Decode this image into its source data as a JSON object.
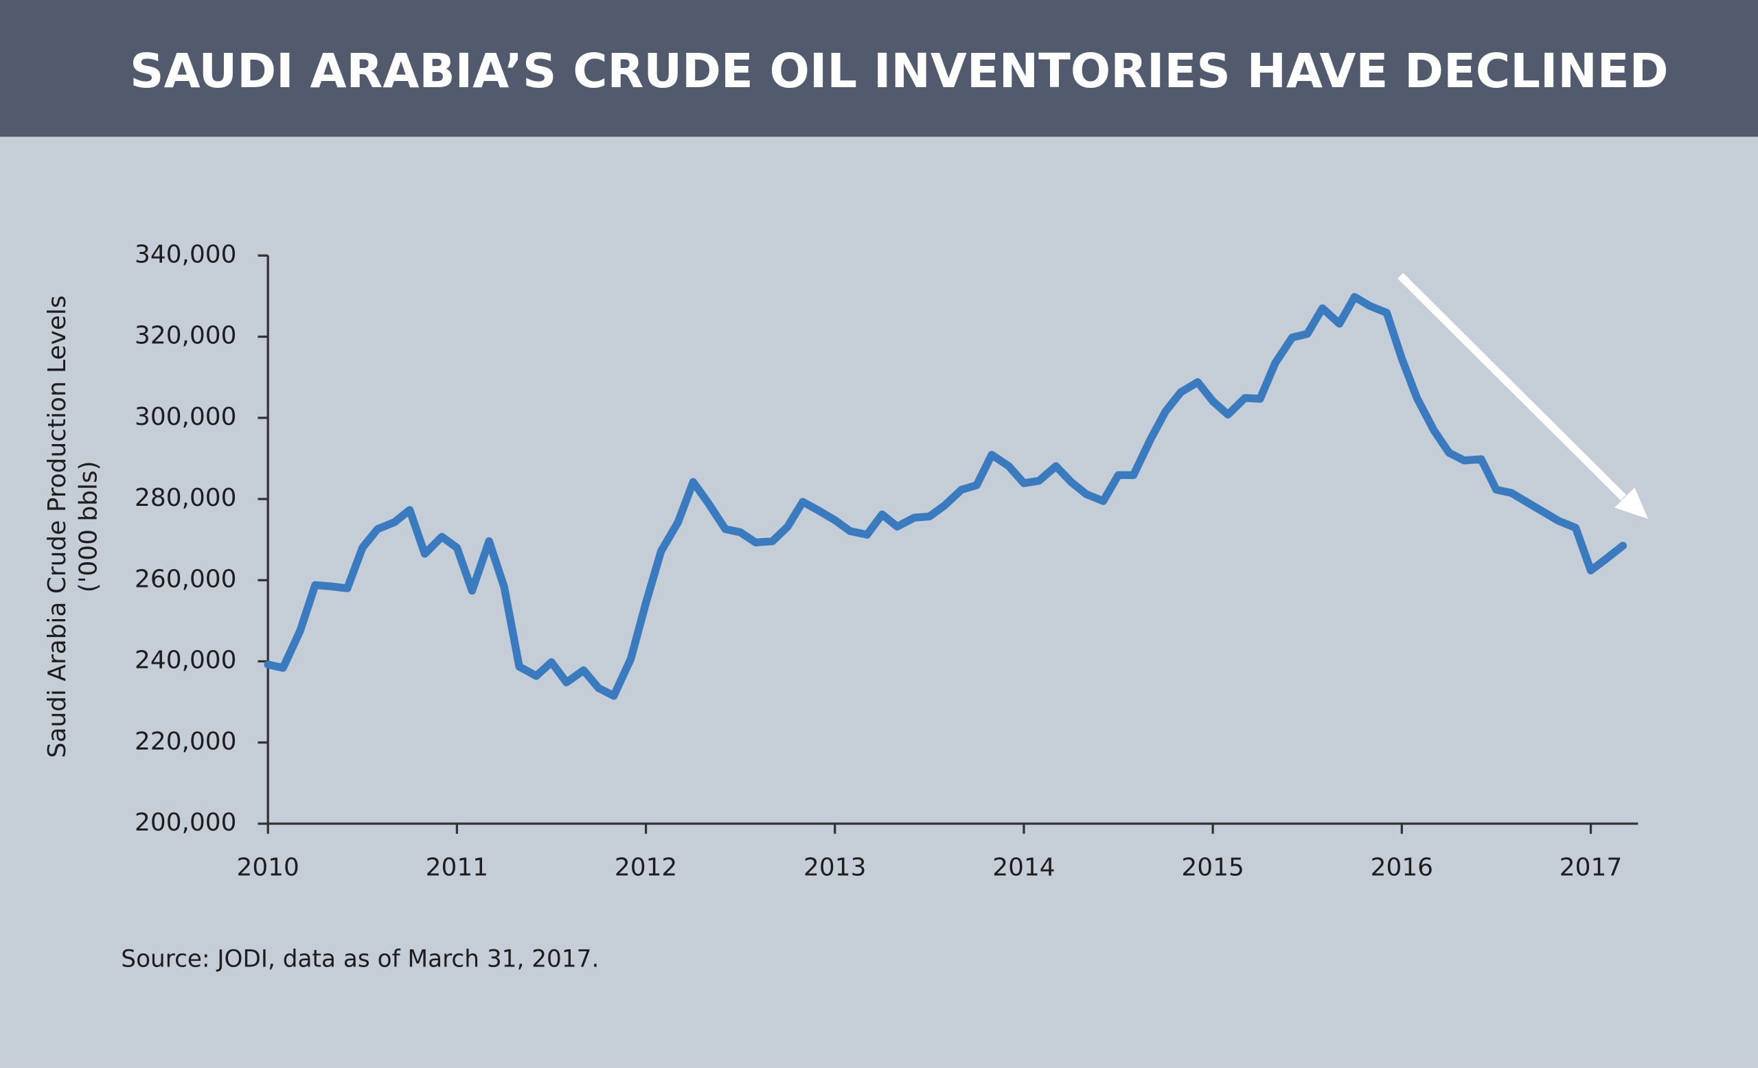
{
  "chart_data": {
    "type": "line",
    "title": "SAUDI ARABIA’S CRUDE OIL INVENTORIES HAVE DECLINED",
    "ylabel": [
      "Saudi Arabia Crude Production Levels",
      "('000 bbls)"
    ],
    "source": "Source: JODI, data as of March 31, 2017.",
    "color": "#3a7bbf",
    "x": [
      2010,
      2010.08,
      2010.17,
      2010.25,
      2010.33,
      2010.42,
      2010.5,
      2010.58,
      2010.67,
      2010.75,
      2010.83,
      2010.92,
      2011,
      2011.08,
      2011.17,
      2011.25,
      2011.33,
      2011.42,
      2011.5,
      2011.58,
      2011.67,
      2011.75,
      2011.83,
      2011.92,
      2012,
      2012.08,
      2012.17,
      2012.25,
      2012.33,
      2012.42,
      2012.5,
      2012.58,
      2012.67,
      2012.75,
      2012.83,
      2012.92,
      2013,
      2013.08,
      2013.17,
      2013.25,
      2013.33,
      2013.42,
      2013.5,
      2013.58,
      2013.67,
      2013.75,
      2013.83,
      2013.92,
      2014,
      2014.08,
      2014.17,
      2014.25,
      2014.33,
      2014.42,
      2014.5,
      2014.58,
      2014.67,
      2014.75,
      2014.83,
      2014.92,
      2015,
      2015.08,
      2015.17,
      2015.25,
      2015.33,
      2015.42,
      2015.5,
      2015.58,
      2015.67,
      2015.75,
      2015.83,
      2015.92,
      2016,
      2016.08,
      2016.17,
      2016.25,
      2016.33,
      2016.42,
      2016.5,
      2016.58,
      2016.67,
      2016.75,
      2016.83,
      2016.92,
      2017,
      2017.08,
      2017.17
    ],
    "values": [
      239200,
      238400,
      247500,
      258800,
      258500,
      258000,
      268000,
      272600,
      274300,
      277300,
      266500,
      270700,
      268000,
      257400,
      269600,
      258300,
      238700,
      236400,
      239800,
      234800,
      237800,
      233400,
      231500,
      240600,
      254400,
      267100,
      274300,
      284200,
      279000,
      272600,
      271800,
      269300,
      269600,
      273200,
      279300,
      277000,
      274800,
      272100,
      271200,
      276200,
      273200,
      275400,
      275700,
      278400,
      282300,
      283400,
      290900,
      288100,
      283900,
      284500,
      288100,
      284200,
      281200,
      279500,
      285900,
      285900,
      294700,
      301600,
      306300,
      308800,
      304100,
      300800,
      304900,
      304700,
      313500,
      319800,
      320700,
      327000,
      323200,
      329800,
      327600,
      325900,
      314600,
      304900,
      296900,
      291400,
      289500,
      289800,
      282300,
      281500,
      279000,
      276800,
      274600,
      272900,
      262400,
      265200,
      268500
    ],
    "xlim": [
      2010,
      2017.25
    ],
    "xticks": [
      2010,
      2011,
      2012,
      2013,
      2014,
      2015,
      2016,
      2017
    ],
    "ylim": [
      200000,
      340000
    ],
    "yticks": [
      {
        "value": 200000,
        "label": "200,000"
      },
      {
        "value": 220000,
        "label": "220,000"
      },
      {
        "value": 240000,
        "label": "240,000"
      },
      {
        "value": 260000,
        "label": "260,000"
      },
      {
        "value": 280000,
        "label": "280,000"
      },
      {
        "value": 300000,
        "label": "300,000"
      },
      {
        "value": 320000,
        "label": "320,000"
      },
      {
        "value": 340000,
        "label": "340,000"
      }
    ],
    "grid": false
  }
}
